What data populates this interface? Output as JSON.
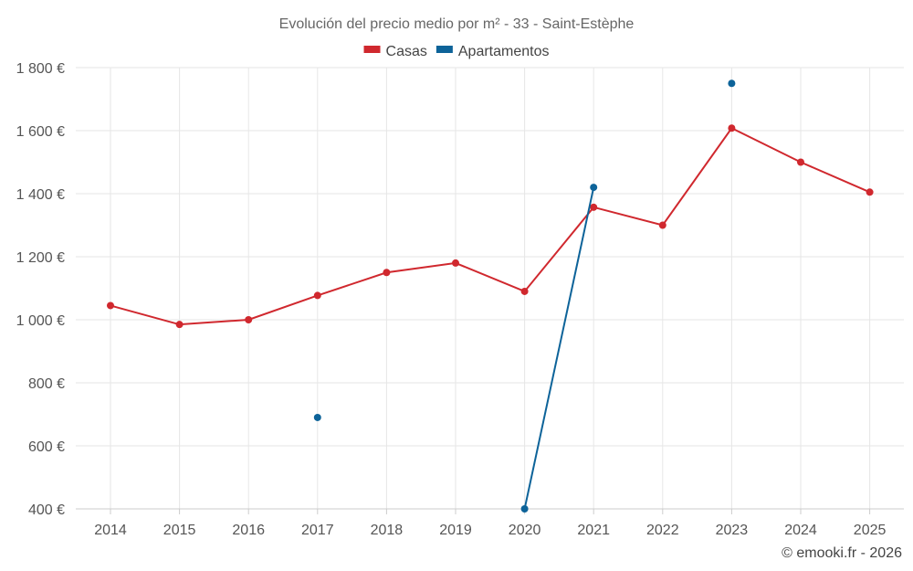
{
  "chart_data": {
    "type": "line",
    "title": "Evolución del precio medio por m² - 33 - Saint-Estèphe",
    "categories": [
      "2014",
      "2015",
      "2016",
      "2017",
      "2018",
      "2019",
      "2020",
      "2021",
      "2022",
      "2023",
      "2024",
      "2025"
    ],
    "series": [
      {
        "name": "Casas",
        "color": "#d0282e",
        "values": [
          1045,
          985,
          1000,
          1077,
          1150,
          1180,
          1090,
          1357,
          1300,
          1608,
          1500,
          1405
        ]
      },
      {
        "name": "Apartamentos",
        "color": "#0d6399",
        "values": [
          null,
          null,
          null,
          690,
          null,
          null,
          400,
          1420,
          null,
          1750,
          null,
          null
        ]
      }
    ],
    "ylim": [
      400,
      1800
    ],
    "yticks": [
      400,
      600,
      800,
      1000,
      1200,
      1400,
      1600,
      1800
    ],
    "ytick_labels": [
      "400 €",
      "600 €",
      "800 €",
      "1 000 €",
      "1 200 €",
      "1 400 €",
      "1 600 €",
      "1 800 €"
    ],
    "xlabel": "",
    "ylabel": "",
    "legend": "top-center",
    "grid": true
  },
  "credit": "© emooki.fr - 2026"
}
